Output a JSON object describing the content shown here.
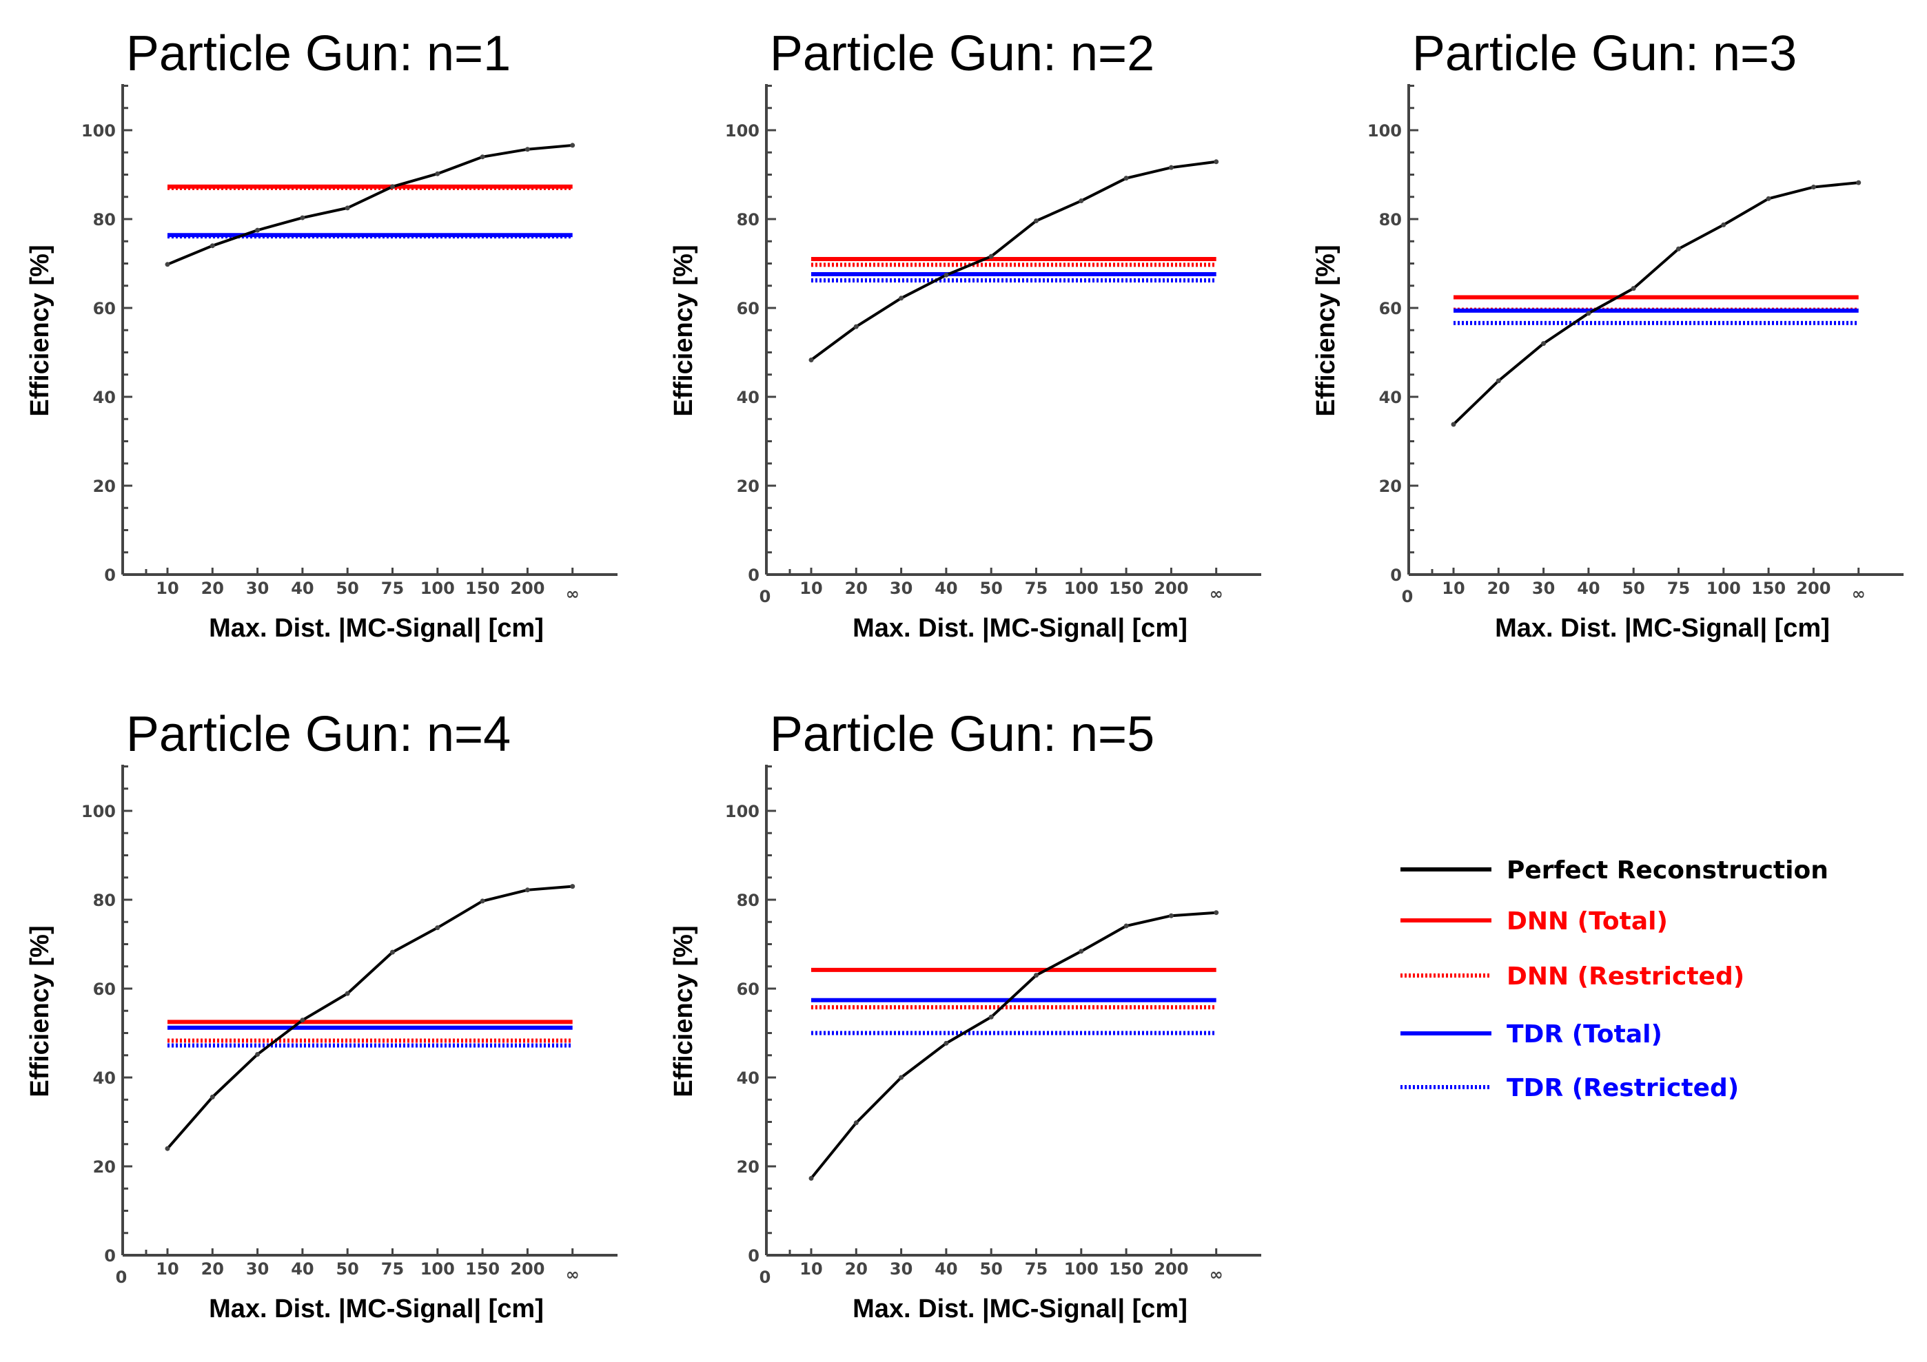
{
  "colors": {
    "perfect": "#000000",
    "dnn": "#ff0000",
    "tdr": "#0000ff",
    "axis": "#444444"
  },
  "legend": {
    "placement": "bottom-right",
    "items": [
      {
        "label": "Perfect Reconstruction",
        "color": "#000000",
        "style": "solid"
      },
      {
        "label": "DNN (Total)",
        "color": "#ff0000",
        "style": "solid"
      },
      {
        "label": "DNN (Restricted)",
        "color": "#ff0000",
        "style": "dotted"
      },
      {
        "label": "TDR (Total)",
        "color": "#0000ff",
        "style": "solid"
      },
      {
        "label": "TDR (Restricted)",
        "color": "#0000ff",
        "style": "dotted"
      }
    ]
  },
  "chart_data": [
    {
      "type": "line",
      "title": "Particle Gun: n=1",
      "xlabel": "Max. Dist. |MC-Signal| [cm]",
      "ylabel": "Efficiency [%]",
      "categories": [
        "10",
        "20",
        "30",
        "40",
        "50",
        "75",
        "100",
        "150",
        "200",
        "∞"
      ],
      "ylim": [
        0,
        110
      ],
      "yticks": [
        0,
        20,
        40,
        60,
        80,
        100
      ],
      "origin_label": "",
      "grid": false,
      "series": [
        {
          "name": "Perfect Reconstruction",
          "values": [
            69.8,
            74,
            77.5,
            80.3,
            82.5,
            87.3,
            90.2,
            94,
            95.7,
            96.6
          ]
        },
        {
          "name": "DNN (Total)",
          "values": [
            87.3,
            87.3,
            87.3,
            87.3,
            87.3,
            87.3,
            87.3,
            87.3,
            87.3,
            87.3
          ]
        },
        {
          "name": "DNN (Restricted)",
          "values": [
            87,
            87,
            87,
            87,
            87,
            87,
            87,
            87,
            87,
            87
          ]
        },
        {
          "name": "TDR (Total)",
          "values": [
            76.4,
            76.4,
            76.4,
            76.4,
            76.4,
            76.4,
            76.4,
            76.4,
            76.4,
            76.4
          ]
        },
        {
          "name": "TDR (Restricted)",
          "values": [
            76.1,
            76.1,
            76.1,
            76.1,
            76.1,
            76.1,
            76.1,
            76.1,
            76.1,
            76.1
          ]
        }
      ]
    },
    {
      "type": "line",
      "title": "Particle Gun: n=2",
      "xlabel": "Max. Dist. |MC-Signal| [cm]",
      "ylabel": "Efficiency [%]",
      "categories": [
        "10",
        "20",
        "30",
        "40",
        "50",
        "75",
        "100",
        "150",
        "200",
        "∞"
      ],
      "ylim": [
        0,
        110
      ],
      "yticks": [
        0,
        20,
        40,
        60,
        80,
        100
      ],
      "origin_label": "0",
      "grid": false,
      "series": [
        {
          "name": "Perfect Reconstruction",
          "values": [
            48.3,
            55.8,
            62.2,
            67.4,
            71.6,
            79.6,
            84.1,
            89.2,
            91.6,
            92.9
          ]
        },
        {
          "name": "DNN (Total)",
          "values": [
            71,
            71,
            71,
            71,
            71,
            71,
            71,
            71,
            71,
            71
          ]
        },
        {
          "name": "DNN (Restricted)",
          "values": [
            69.7,
            69.7,
            69.7,
            69.7,
            69.7,
            69.7,
            69.7,
            69.7,
            69.7,
            69.7
          ]
        },
        {
          "name": "TDR (Total)",
          "values": [
            67.6,
            67.6,
            67.6,
            67.6,
            67.6,
            67.6,
            67.6,
            67.6,
            67.6,
            67.6
          ]
        },
        {
          "name": "TDR (Restricted)",
          "values": [
            66.2,
            66.2,
            66.2,
            66.2,
            66.2,
            66.2,
            66.2,
            66.2,
            66.2,
            66.2
          ]
        }
      ]
    },
    {
      "type": "line",
      "title": "Particle Gun: n=3",
      "xlabel": "Max. Dist. |MC-Signal| [cm]",
      "ylabel": "Efficiency [%]",
      "categories": [
        "10",
        "20",
        "30",
        "40",
        "50",
        "75",
        "100",
        "150",
        "200",
        "∞"
      ],
      "ylim": [
        0,
        110
      ],
      "yticks": [
        0,
        20,
        40,
        60,
        80,
        100
      ],
      "origin_label": "0",
      "grid": false,
      "series": [
        {
          "name": "Perfect Reconstruction",
          "values": [
            33.8,
            43.6,
            52,
            58.8,
            64.4,
            73.3,
            78.7,
            84.6,
            87.2,
            88.2
          ]
        },
        {
          "name": "DNN (Total)",
          "values": [
            62.4,
            62.4,
            62.4,
            62.4,
            62.4,
            62.4,
            62.4,
            62.4,
            62.4,
            62.4
          ]
        },
        {
          "name": "DNN (Restricted)",
          "values": [
            59.6,
            59.6,
            59.6,
            59.6,
            59.6,
            59.6,
            59.6,
            59.6,
            59.6,
            59.6
          ]
        },
        {
          "name": "TDR (Total)",
          "values": [
            59.4,
            59.4,
            59.4,
            59.4,
            59.4,
            59.4,
            59.4,
            59.4,
            59.4,
            59.4
          ]
        },
        {
          "name": "TDR (Restricted)",
          "values": [
            56.6,
            56.6,
            56.6,
            56.6,
            56.6,
            56.6,
            56.6,
            56.6,
            56.6,
            56.6
          ]
        }
      ]
    },
    {
      "type": "line",
      "title": "Particle Gun: n=4",
      "xlabel": "Max. Dist. |MC-Signal| [cm]",
      "ylabel": "Efficiency [%]",
      "categories": [
        "10",
        "20",
        "30",
        "40",
        "50",
        "75",
        "100",
        "150",
        "200",
        "∞"
      ],
      "ylim": [
        0,
        110
      ],
      "yticks": [
        0,
        20,
        40,
        60,
        80,
        100
      ],
      "origin_label": "0",
      "grid": false,
      "series": [
        {
          "name": "Perfect Reconstruction",
          "values": [
            24,
            35.6,
            45.2,
            52.9,
            58.9,
            68.2,
            73.7,
            79.7,
            82.2,
            83
          ]
        },
        {
          "name": "DNN (Total)",
          "values": [
            52.5,
            52.5,
            52.5,
            52.5,
            52.5,
            52.5,
            52.5,
            52.5,
            52.5,
            52.5
          ]
        },
        {
          "name": "DNN (Restricted)",
          "values": [
            48.3,
            48.3,
            48.3,
            48.3,
            48.3,
            48.3,
            48.3,
            48.3,
            48.3,
            48.3
          ]
        },
        {
          "name": "TDR (Total)",
          "values": [
            51.2,
            51.2,
            51.2,
            51.2,
            51.2,
            51.2,
            51.2,
            51.2,
            51.2,
            51.2
          ]
        },
        {
          "name": "TDR (Restricted)",
          "values": [
            47.2,
            47.2,
            47.2,
            47.2,
            47.2,
            47.2,
            47.2,
            47.2,
            47.2,
            47.2
          ]
        }
      ]
    },
    {
      "type": "line",
      "title": "Particle Gun: n=5",
      "xlabel": "Max. Dist. |MC-Signal| [cm]",
      "ylabel": "Efficiency [%]",
      "categories": [
        "10",
        "20",
        "30",
        "40",
        "50",
        "75",
        "100",
        "150",
        "200",
        "∞"
      ],
      "ylim": [
        0,
        110
      ],
      "yticks": [
        0,
        20,
        40,
        60,
        80,
        100
      ],
      "origin_label": "0",
      "grid": false,
      "series": [
        {
          "name": "Perfect Reconstruction",
          "values": [
            17.3,
            29.8,
            40,
            47.7,
            53.6,
            63,
            68.4,
            74.1,
            76.4,
            77.1
          ]
        },
        {
          "name": "DNN (Total)",
          "values": [
            64.2,
            64.2,
            64.2,
            64.2,
            64.2,
            64.2,
            64.2,
            64.2,
            64.2,
            64.2
          ]
        },
        {
          "name": "DNN (Restricted)",
          "values": [
            55.8,
            55.8,
            55.8,
            55.8,
            55.8,
            55.8,
            55.8,
            55.8,
            55.8,
            55.8
          ]
        },
        {
          "name": "TDR (Total)",
          "values": [
            57.4,
            57.4,
            57.4,
            57.4,
            57.4,
            57.4,
            57.4,
            57.4,
            57.4,
            57.4
          ]
        },
        {
          "name": "TDR (Restricted)",
          "values": [
            50,
            50,
            50,
            50,
            50,
            50,
            50,
            50,
            50,
            50
          ]
        }
      ]
    }
  ]
}
